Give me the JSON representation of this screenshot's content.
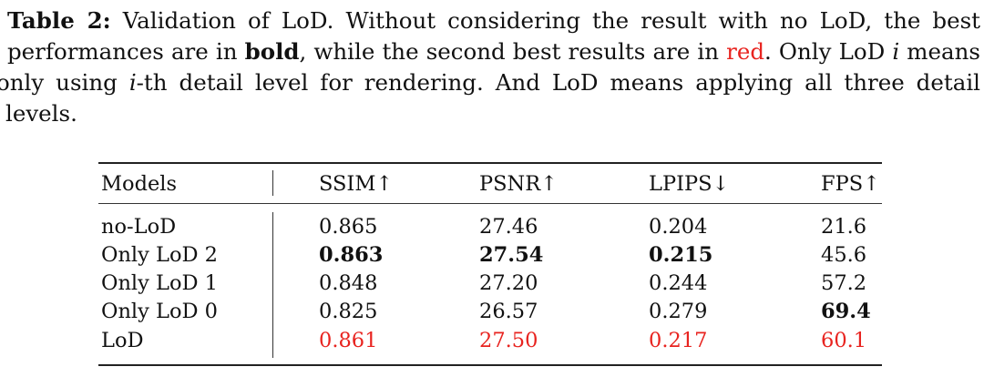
{
  "caption": {
    "label": "Table 2:",
    "l1_text": " Validation of LoD. Without considering the result with no LoD, the best",
    "l2_pre": "performances are in ",
    "l2_bold": "bold",
    "l2_mid": ", while the second best results are in ",
    "l2_red": "red",
    "l2_post": ". Only LoD ",
    "l2_var": "i",
    "l2_end": " means",
    "l3_pre": "only using ",
    "l3_var": "i",
    "l3_post": "-th detail level for rendering. And LoD means applying all three detail",
    "l4": "levels."
  },
  "table": {
    "headers": [
      "Models",
      "SSIM↑",
      "PSNR↑",
      "LPIPS↓",
      "FPS↑"
    ],
    "rows": [
      {
        "model": "no-LoD",
        "ssim": "0.865",
        "psnr": "27.46",
        "lpips": "0.204",
        "fps": "21.6"
      },
      {
        "model": "Only LoD 2",
        "ssim": "0.863",
        "psnr": "27.54",
        "lpips": "0.215",
        "fps": "45.6"
      },
      {
        "model": "Only LoD 1",
        "ssim": "0.848",
        "psnr": "27.20",
        "lpips": "0.244",
        "fps": "57.2"
      },
      {
        "model": "Only LoD 0",
        "ssim": "0.825",
        "psnr": "26.57",
        "lpips": "0.279",
        "fps": "69.4"
      },
      {
        "model": "LoD",
        "ssim": "0.861",
        "psnr": "27.50",
        "lpips": "0.217",
        "fps": "60.1"
      }
    ]
  },
  "colors": {
    "second_best": "#e8231f"
  }
}
